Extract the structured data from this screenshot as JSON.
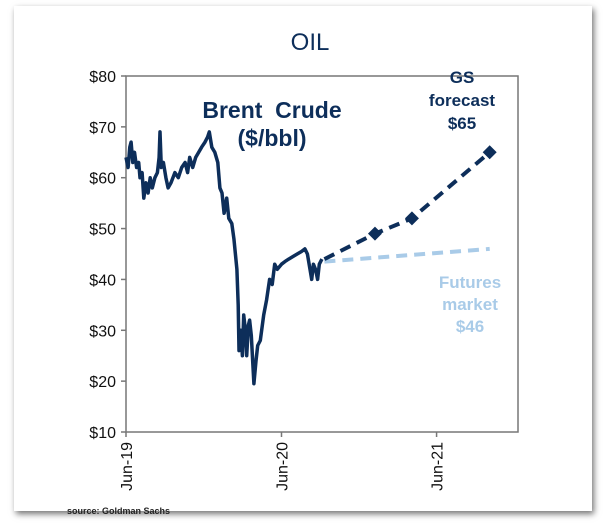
{
  "chart_data": {
    "type": "line",
    "title": "OIL",
    "inner_label": [
      "Brent  Crude",
      "($/bbl)"
    ],
    "xlabel": "",
    "ylabel": "",
    "ylim": [
      10,
      80
    ],
    "yticks": [
      "$10",
      "$20",
      "$30",
      "$40",
      "$50",
      "$60",
      "$70",
      "$80"
    ],
    "ytick_values": [
      10,
      20,
      30,
      40,
      50,
      60,
      70,
      80
    ],
    "xticks": [
      "Jun-19",
      "Jun-20",
      "Jun-21"
    ],
    "xtick_dates": [
      "2019-06-01",
      "2020-06-01",
      "2021-06-01"
    ],
    "xlim": [
      "2019-06-01",
      "2021-12-01"
    ],
    "grid": false,
    "series": [
      {
        "style": "solid",
        "color": "#0d2e5a",
        "points": [
          [
            "2019-06-01",
            64
          ],
          [
            "2019-06-06",
            62
          ],
          [
            "2019-06-10",
            66
          ],
          [
            "2019-06-13",
            67
          ],
          [
            "2019-06-17",
            63
          ],
          [
            "2019-06-21",
            65
          ],
          [
            "2019-06-26",
            62
          ],
          [
            "2019-07-01",
            63
          ],
          [
            "2019-07-04",
            60
          ],
          [
            "2019-07-09",
            61
          ],
          [
            "2019-07-13",
            56
          ],
          [
            "2019-07-18",
            59
          ],
          [
            "2019-07-23",
            57
          ],
          [
            "2019-07-28",
            60
          ],
          [
            "2019-08-02",
            58
          ],
          [
            "2019-08-08",
            60
          ],
          [
            "2019-08-14",
            61
          ],
          [
            "2019-08-18",
            64
          ],
          [
            "2019-08-20",
            69
          ],
          [
            "2019-08-23",
            62
          ],
          [
            "2019-08-28",
            63
          ],
          [
            "2019-09-03",
            60
          ],
          [
            "2019-09-08",
            58
          ],
          [
            "2019-09-15",
            59
          ],
          [
            "2019-09-24",
            61
          ],
          [
            "2019-10-02",
            60
          ],
          [
            "2019-10-10",
            62
          ],
          [
            "2019-10-18",
            63
          ],
          [
            "2019-10-24",
            61
          ],
          [
            "2019-10-29",
            64
          ],
          [
            "2019-11-05",
            62
          ],
          [
            "2019-11-12",
            64
          ],
          [
            "2019-11-19",
            65
          ],
          [
            "2019-11-26",
            66
          ],
          [
            "2019-12-04",
            67
          ],
          [
            "2019-12-10",
            68
          ],
          [
            "2019-12-14",
            69
          ],
          [
            "2019-12-20",
            66
          ],
          [
            "2019-12-27",
            65
          ],
          [
            "2020-01-03",
            63
          ],
          [
            "2020-01-08",
            58
          ],
          [
            "2020-01-13",
            57
          ],
          [
            "2020-01-18",
            53
          ],
          [
            "2020-01-24",
            56
          ],
          [
            "2020-01-29",
            52
          ],
          [
            "2020-02-05",
            51
          ],
          [
            "2020-02-10",
            48
          ],
          [
            "2020-02-17",
            42
          ],
          [
            "2020-02-20",
            35
          ],
          [
            "2020-02-22",
            26
          ],
          [
            "2020-02-26",
            30
          ],
          [
            "2020-03-01",
            25
          ],
          [
            "2020-03-04",
            33
          ],
          [
            "2020-03-08",
            30
          ],
          [
            "2020-03-11",
            25
          ],
          [
            "2020-03-15",
            31
          ],
          [
            "2020-03-18",
            32
          ],
          [
            "2020-03-22",
            29
          ],
          [
            "2020-03-28",
            19.5
          ],
          [
            "2020-04-02",
            24
          ],
          [
            "2020-04-06",
            27
          ],
          [
            "2020-04-12",
            28
          ],
          [
            "2020-04-20",
            33
          ],
          [
            "2020-04-27",
            36
          ],
          [
            "2020-05-04",
            40
          ],
          [
            "2020-05-10",
            39
          ],
          [
            "2020-05-16",
            43
          ],
          [
            "2020-05-22",
            42
          ],
          [
            "2020-06-01",
            43
          ],
          [
            "2020-06-09",
            43.5
          ],
          [
            "2020-06-18",
            44
          ],
          [
            "2020-06-28",
            44.5
          ],
          [
            "2020-07-08",
            45
          ],
          [
            "2020-07-18",
            45.5
          ],
          [
            "2020-07-26",
            46
          ],
          [
            "2020-08-01",
            45
          ],
          [
            "2020-08-07",
            42
          ],
          [
            "2020-08-11",
            40
          ],
          [
            "2020-08-15",
            43
          ],
          [
            "2020-08-20",
            42
          ],
          [
            "2020-08-25",
            40
          ],
          [
            "2020-08-29",
            43
          ],
          [
            "2020-09-04",
            44
          ]
        ]
      },
      {
        "name": "GS forecast $65",
        "style": "dashed",
        "color": "#0d2e5a",
        "markers": "diamond",
        "points": [
          [
            "2020-09-10",
            44
          ],
          [
            "2021-01-07",
            49
          ],
          [
            "2021-04-04",
            52
          ],
          [
            "2021-10-04",
            65
          ]
        ]
      },
      {
        "name": "Futures market $46",
        "style": "dashed",
        "color": "#a9cbe8",
        "points": [
          [
            "2020-09-10",
            43.5
          ],
          [
            "2021-10-04",
            46
          ]
        ]
      }
    ],
    "annotations": {
      "gs": [
        "GS",
        "forecast",
        "$65"
      ],
      "futures": [
        "Futures",
        "market",
        "$46"
      ]
    }
  },
  "source": "source: Goldman Sachs"
}
